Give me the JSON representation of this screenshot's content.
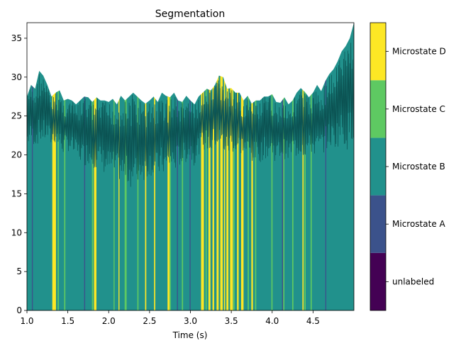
{
  "chart_data": {
    "type": "area",
    "title": "Segmentation",
    "xlabel": "Time (s)",
    "ylabel": "",
    "xlim": [
      1.0,
      5.0
    ],
    "ylim": [
      0,
      37
    ],
    "xticks": [
      1.0,
      1.5,
      2.0,
      2.5,
      3.0,
      3.5,
      4.0,
      4.5
    ],
    "xtick_labels": [
      "1.0",
      "1.5",
      "2.0",
      "2.5",
      "3.0",
      "3.5",
      "4.0",
      "4.5"
    ],
    "yticks": [
      0,
      5,
      10,
      15,
      20,
      25,
      30,
      35
    ],
    "ytick_labels": [
      "0",
      "5",
      "10",
      "15",
      "20",
      "25",
      "30",
      "35"
    ],
    "signal": {
      "description_units": "GFP amplitude per time sample",
      "x": [
        1.0,
        1.05,
        1.1,
        1.15,
        1.2,
        1.25,
        1.3,
        1.35,
        1.4,
        1.45,
        1.5,
        1.55,
        1.6,
        1.65,
        1.7,
        1.75,
        1.8,
        1.85,
        1.9,
        1.95,
        2.0,
        2.05,
        2.1,
        2.15,
        2.2,
        2.25,
        2.3,
        2.35,
        2.4,
        2.45,
        2.5,
        2.55,
        2.6,
        2.65,
        2.7,
        2.75,
        2.8,
        2.85,
        2.9,
        2.95,
        3.0,
        3.05,
        3.1,
        3.15,
        3.2,
        3.25,
        3.3,
        3.35,
        3.4,
        3.45,
        3.5,
        3.55,
        3.6,
        3.65,
        3.7,
        3.75,
        3.8,
        3.85,
        3.9,
        3.95,
        4.0,
        4.05,
        4.1,
        4.15,
        4.2,
        4.25,
        4.3,
        4.35,
        4.4,
        4.45,
        4.5,
        4.55,
        4.6,
        4.65,
        4.7,
        4.75,
        4.8,
        4.85,
        4.9,
        4.95,
        5.0
      ],
      "upper": [
        27.5,
        29.0,
        28.5,
        30.8,
        30.2,
        29.0,
        27.5,
        28.0,
        28.3,
        27.0,
        27.2,
        27.0,
        26.5,
        27.0,
        27.5,
        27.4,
        26.8,
        27.4,
        27.0,
        27.0,
        26.8,
        27.2,
        26.5,
        27.6,
        27.0,
        27.5,
        28.0,
        27.5,
        27.0,
        26.6,
        27.0,
        27.5,
        26.8,
        28.0,
        27.6,
        27.4,
        28.0,
        27.0,
        26.8,
        27.6,
        27.0,
        26.5,
        27.5,
        28.0,
        28.5,
        28.3,
        29.0,
        30.2,
        30.0,
        28.5,
        28.6,
        28.0,
        28.0,
        27.0,
        27.6,
        26.6,
        27.0,
        27.0,
        27.5,
        27.5,
        27.8,
        26.8,
        26.7,
        27.4,
        26.5,
        27.0,
        28.0,
        28.6,
        28.1,
        27.4,
        28.0,
        29.0,
        28.2,
        29.5,
        30.4,
        31.0,
        32.0,
        33.3,
        34.0,
        35.0,
        37.0
      ],
      "lower": [
        21.0,
        21.5,
        21.0,
        21.5,
        21.5,
        21.8,
        21.0,
        21.5,
        20.5,
        20.0,
        20.5,
        20.0,
        19.5,
        19.0,
        18.5,
        18.8,
        18.5,
        18.0,
        18.2,
        17.5,
        17.5,
        17.0,
        16.8,
        16.5,
        16.0,
        16.0,
        15.5,
        16.0,
        17.0,
        16.5,
        17.5,
        16.8,
        17.0,
        17.5,
        17.0,
        18.0,
        17.5,
        18.5,
        18.5,
        19.0,
        19.5,
        18.5,
        20.0,
        20.5,
        20.5,
        20.0,
        21.0,
        20.5,
        20.0,
        19.5,
        20.5,
        19.8,
        20.0,
        20.0,
        19.5,
        19.0,
        19.0,
        19.0,
        19.5,
        19.5,
        19.5,
        19.0,
        19.5,
        19.5,
        19.0,
        20.0,
        19.5,
        20.0,
        19.5,
        20.0,
        20.0,
        19.5,
        20.0,
        20.5,
        21.0,
        20.5,
        21.0,
        21.5,
        20.5,
        21.0,
        22.0
      ],
      "fill_color": "#21918c",
      "line_color": "#0b5252"
    },
    "segments_default_label": "Microstate B",
    "segments": [
      {
        "label": "Microstate A",
        "start": 1.06,
        "end": 1.072
      },
      {
        "label": "Microstate D",
        "start": 1.31,
        "end": 1.355
      },
      {
        "label": "Microstate C",
        "start": 1.375,
        "end": 1.39
      },
      {
        "label": "Microstate C",
        "start": 1.455,
        "end": 1.47
      },
      {
        "label": "Microstate A",
        "start": 1.7,
        "end": 1.712
      },
      {
        "label": "Microstate C",
        "start": 1.795,
        "end": 1.81
      },
      {
        "label": "Microstate D",
        "start": 1.82,
        "end": 1.85
      },
      {
        "label": "Microstate C",
        "start": 2.06,
        "end": 2.072
      },
      {
        "label": "Microstate D",
        "start": 2.12,
        "end": 2.132
      },
      {
        "label": "Microstate C",
        "start": 2.195,
        "end": 2.22
      },
      {
        "label": "Microstate C",
        "start": 2.35,
        "end": 2.365
      },
      {
        "label": "Microstate D",
        "start": 2.445,
        "end": 2.46
      },
      {
        "label": "Microstate D",
        "start": 2.555,
        "end": 2.57
      },
      {
        "label": "Microstate D",
        "start": 2.72,
        "end": 2.745
      },
      {
        "label": "Microstate C",
        "start": 2.745,
        "end": 2.76
      },
      {
        "label": "Microstate A",
        "start": 2.835,
        "end": 2.847
      },
      {
        "label": "Microstate C",
        "start": 2.895,
        "end": 2.91
      },
      {
        "label": "Microstate A",
        "start": 2.99,
        "end": 3.002
      },
      {
        "label": "Microstate D",
        "start": 3.13,
        "end": 3.165
      },
      {
        "label": "Microstate C",
        "start": 3.185,
        "end": 3.2
      },
      {
        "label": "Microstate D",
        "start": 3.22,
        "end": 3.245
      },
      {
        "label": "Microstate D",
        "start": 3.27,
        "end": 3.29
      },
      {
        "label": "Microstate D",
        "start": 3.32,
        "end": 3.345
      },
      {
        "label": "Microstate D",
        "start": 3.365,
        "end": 3.395
      },
      {
        "label": "Microstate D",
        "start": 3.41,
        "end": 3.425
      },
      {
        "label": "Microstate D",
        "start": 3.44,
        "end": 3.465
      },
      {
        "label": "Microstate D",
        "start": 3.485,
        "end": 3.52
      },
      {
        "label": "Microstate C",
        "start": 3.525,
        "end": 3.54
      },
      {
        "label": "Microstate D",
        "start": 3.57,
        "end": 3.59
      },
      {
        "label": "Microstate D",
        "start": 3.62,
        "end": 3.65
      },
      {
        "label": "Microstate C",
        "start": 3.7,
        "end": 3.715
      },
      {
        "label": "Microstate D",
        "start": 3.745,
        "end": 3.765
      },
      {
        "label": "Microstate C",
        "start": 3.79,
        "end": 3.805
      },
      {
        "label": "Microstate C",
        "start": 3.99,
        "end": 4.005
      },
      {
        "label": "Microstate A",
        "start": 4.12,
        "end": 4.135
      },
      {
        "label": "Microstate C",
        "start": 4.135,
        "end": 4.15
      },
      {
        "label": "Microstate C",
        "start": 4.245,
        "end": 4.26
      },
      {
        "label": "Microstate D",
        "start": 4.37,
        "end": 4.385
      },
      {
        "label": "Microstate C",
        "start": 4.395,
        "end": 4.41
      },
      {
        "label": "Microstate C",
        "start": 4.47,
        "end": 4.485
      },
      {
        "label": "Microstate A",
        "start": 4.65,
        "end": 4.662
      }
    ],
    "colorbar": {
      "labels": [
        "unlabeled",
        "Microstate A",
        "Microstate B",
        "Microstate C",
        "Microstate D"
      ],
      "colors": [
        "#440154",
        "#3b528b",
        "#21918c",
        "#5ec962",
        "#fde725"
      ]
    }
  }
}
